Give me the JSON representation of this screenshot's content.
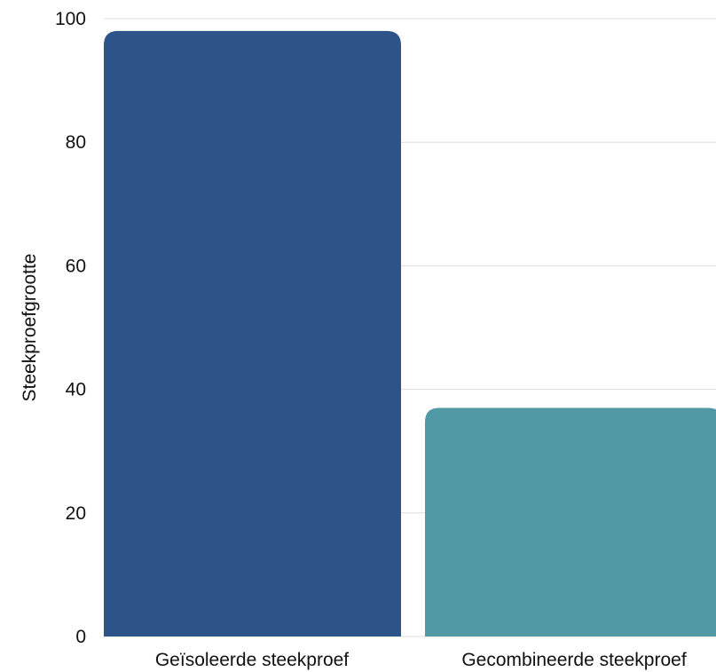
{
  "chart_data": {
    "type": "bar",
    "title": "",
    "xlabel": "",
    "ylabel": "Steekproefgrootte",
    "categories": [
      "Geïsoleerde steekproef",
      "Gecombineerde steekproef"
    ],
    "values": [
      98,
      37
    ],
    "ylim": [
      0,
      100
    ],
    "yticks": [
      0,
      20,
      40,
      60,
      80,
      100
    ],
    "grid": true,
    "legend": "none",
    "colors": [
      "#2d5489",
      "#5299a6"
    ],
    "grid_color": "#dddddd"
  }
}
